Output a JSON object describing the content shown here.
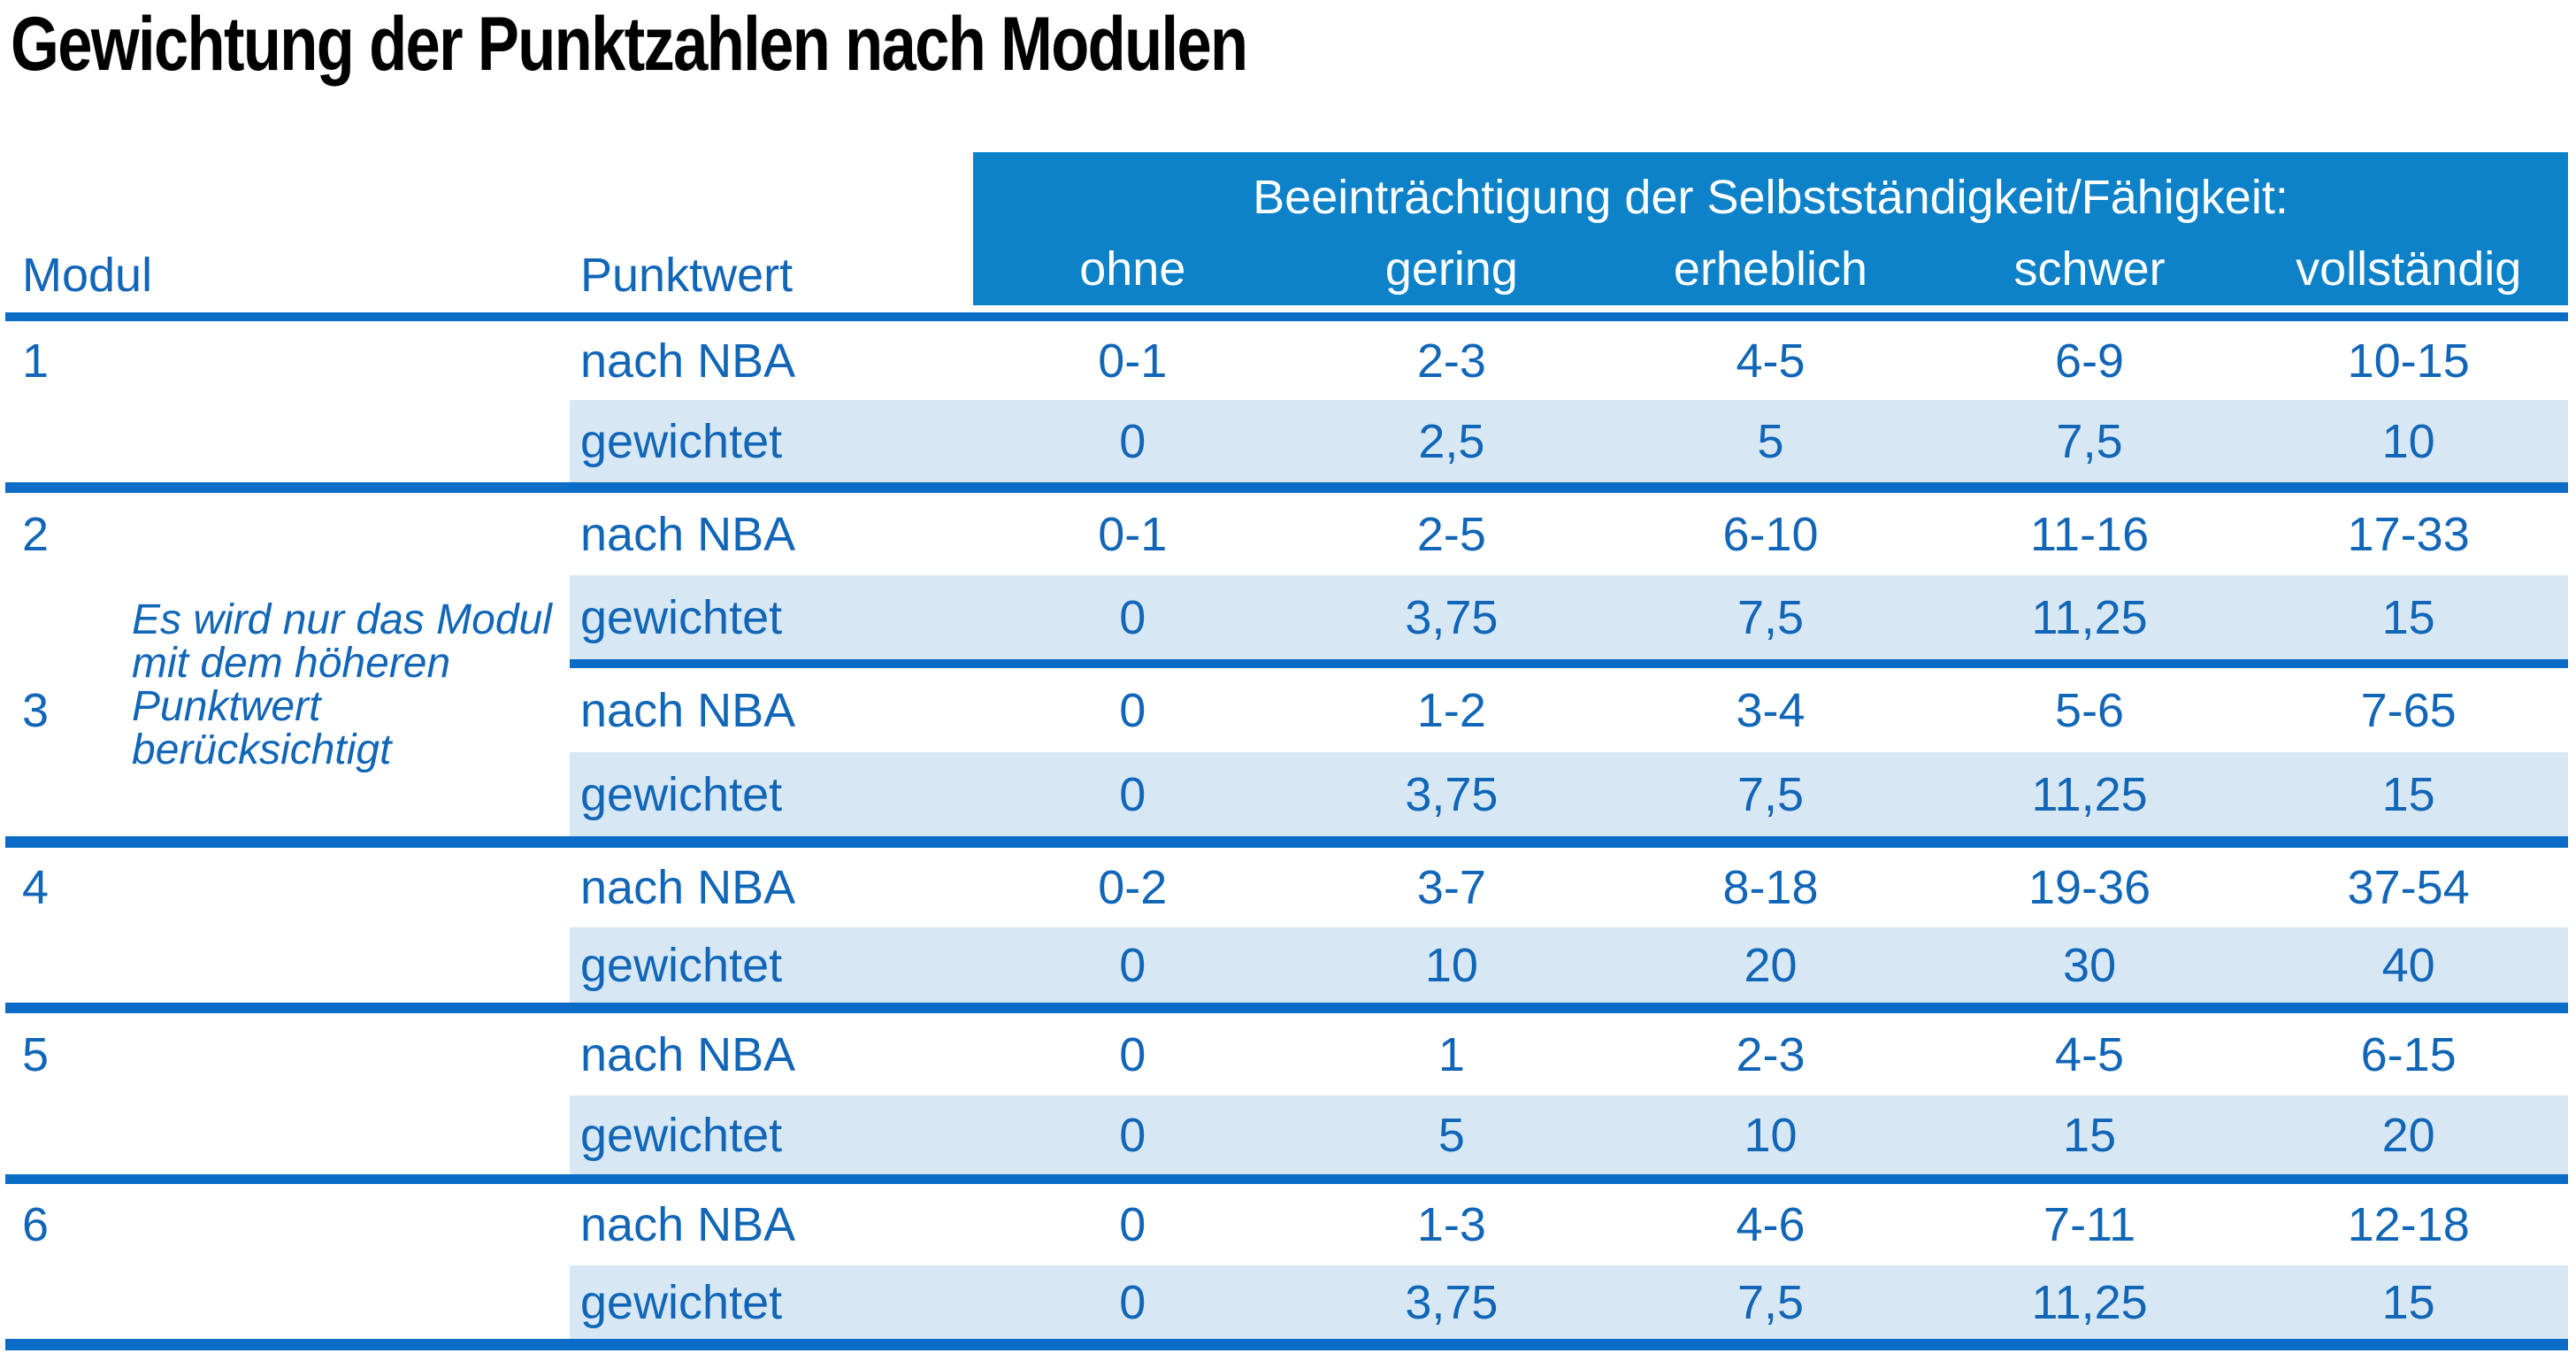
{
  "title": "Gewichtung der Punktzahlen nach Modulen",
  "table": {
    "col_module": "Modul",
    "col_punktwert": "Punktwert",
    "group_header": "Beeinträchtigung der Selbstständigkeit/Fähigkeit:",
    "severity_levels": [
      "ohne",
      "gering",
      "erheblich",
      "schwer",
      "vollständig"
    ],
    "row_labels": {
      "nba": "nach NBA",
      "weighted": "gewichtet"
    },
    "note": {
      "line1": "Es wird nur das Modul",
      "line2": "mit dem höheren",
      "line3": "Punktwert berücksichtigt"
    },
    "modules": [
      {
        "id": "1",
        "nba": [
          "0-1",
          "2-3",
          "4-5",
          "6-9",
          "10-15"
        ],
        "weighted": [
          "0",
          "2,5",
          "5",
          "7,5",
          "10"
        ]
      },
      {
        "id": "2",
        "nba": [
          "0-1",
          "2-5",
          "6-10",
          "11-16",
          "17-33"
        ],
        "weighted": [
          "0",
          "3,75",
          "7,5",
          "11,25",
          "15"
        ]
      },
      {
        "id": "3",
        "nba": [
          "0",
          "1-2",
          "3-4",
          "5-6",
          "7-65"
        ],
        "weighted": [
          "0",
          "3,75",
          "7,5",
          "11,25",
          "15"
        ]
      },
      {
        "id": "4",
        "nba": [
          "0-2",
          "3-7",
          "8-18",
          "19-36",
          "37-54"
        ],
        "weighted": [
          "0",
          "10",
          "20",
          "30",
          "40"
        ]
      },
      {
        "id": "5",
        "nba": [
          "0",
          "1",
          "2-3",
          "4-5",
          "6-15"
        ],
        "weighted": [
          "0",
          "5",
          "10",
          "15",
          "20"
        ]
      },
      {
        "id": "6",
        "nba": [
          "0",
          "1-3",
          "4-6",
          "7-11",
          "12-18"
        ],
        "weighted": [
          "0",
          "3,75",
          "7,5",
          "11,25",
          "15"
        ]
      }
    ]
  },
  "colors": {
    "header_bg": "#0e82c8",
    "rule_blue": "#0b6cc7",
    "accent_text": "#1166b8",
    "row_band_bg": "#d7e7f4",
    "header_text": "#ffffff",
    "title_text": "#000000"
  }
}
